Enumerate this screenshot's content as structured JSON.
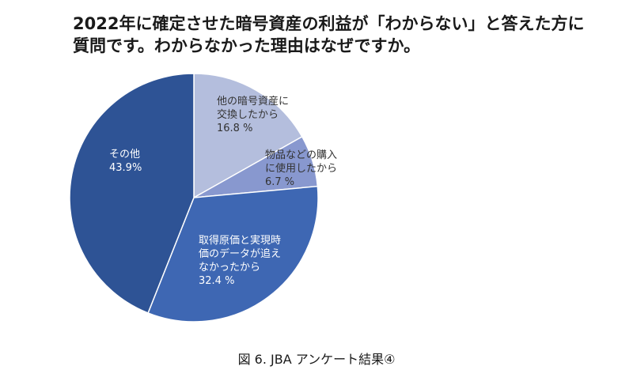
{
  "chart_data": {
    "type": "pie",
    "title": "2022年に確定させた暗号資産の利益が「わからない」と答えた方に質問です。わからなかった理由はなぜですか。",
    "caption": "図 6. JBA アンケート結果④",
    "slices": [
      {
        "label_lines": [
          "他の暗号資産に",
          "交換したから",
          "16.8 %"
        ],
        "value": 16.8,
        "color": "#b4bedd",
        "text_color": "#333333"
      },
      {
        "label_lines": [
          "物品などの購入",
          "に使用したから",
          "6.7 %"
        ],
        "value": 6.7,
        "color": "#8898cf",
        "text_color": "#333333"
      },
      {
        "label_lines": [
          "取得原価と実現時",
          "価のデータが追え",
          "なかったから",
          "32.4 %"
        ],
        "value": 32.4,
        "color": "#3e67b3",
        "text_color": "#ffffff"
      },
      {
        "label_lines": [
          "その他",
          "43.9%"
        ],
        "value": 43.9,
        "color": "#2e5395",
        "text_color": "#ffffff"
      }
    ]
  }
}
